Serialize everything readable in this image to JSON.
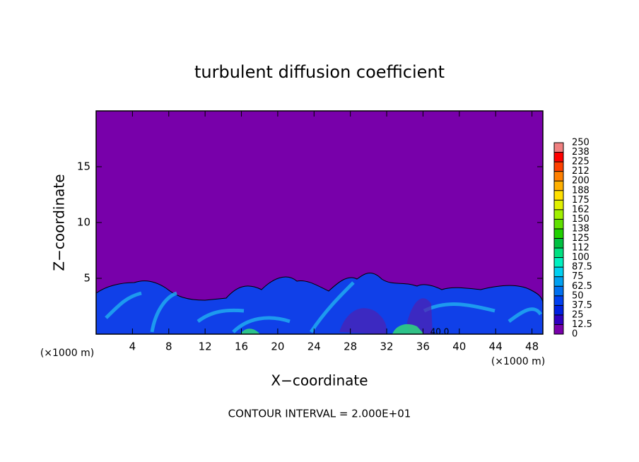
{
  "chart_data": {
    "type": "contour",
    "title": "turbulent diffusion coefficient",
    "x_label": "X−coordinate",
    "y_label": "Z−coordinate",
    "x_unit": "(×1000 m)",
    "x_unit_right": "(×1000 m)",
    "annotation": "CONTOUR INTERVAL = 2.000E+01",
    "contour_label": "40.0",
    "xlim": [
      0,
      49.2
    ],
    "ylim": [
      0,
      20
    ],
    "xticks": [
      4,
      8,
      12,
      16,
      20,
      24,
      28,
      32,
      36,
      40,
      44,
      48
    ],
    "yticks": [
      5,
      10,
      15
    ],
    "colorbar": {
      "levels": [
        0,
        12.5,
        25,
        37.5,
        50,
        62.5,
        75,
        87.5,
        100,
        {
          "value": 112.5,
          "label": "112"
        },
        125,
        {
          "value": 137.5,
          "label": "138"
        },
        150,
        {
          "value": 162.5,
          "label": "162"
        },
        175,
        {
          "value": 187.5,
          "label": "188"
        },
        200,
        {
          "value": 212.5,
          "label": "212"
        },
        225,
        {
          "value": 237.5,
          "label": "238"
        },
        250
      ],
      "colors": [
        "#7800aa",
        "#3000c0",
        "#0020e0",
        "#0040f0",
        "#0070f0",
        "#00a0f0",
        "#00d0f0",
        "#00f0c0",
        "#00e080",
        "#00c040",
        "#20d000",
        "#60e000",
        "#a0f000",
        "#e0f000",
        "#ffe000",
        "#ffb000",
        "#ff8000",
        "#ff4000",
        "#ff0000",
        "#f08080"
      ]
    }
  }
}
